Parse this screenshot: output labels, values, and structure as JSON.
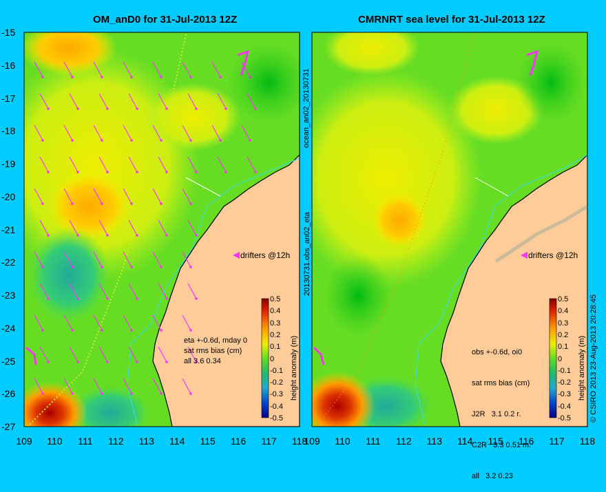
{
  "panels": [
    {
      "title": "OM_anD0 for 31-Jul-2013 12Z",
      "side_label": "ocean_an02_20130731",
      "stats_lines": [
        "eta +-0.6d, mday 0",
        "sat rms bias (cm)",
        "all 3.6 0.34"
      ],
      "drifters_label": "drifters @12h"
    },
    {
      "title": "CMRNRT sea level  for 31-Jul-2013 12Z",
      "side_label": "20130731.obs_an02_eta",
      "stats_lines": [
        "obs +-0.6d, oi0",
        "sat rms bias (cm)",
        "J2R   3.1 0.2 r.",
        "C2R   3.3 0.51 m.",
        "all   3.2 0.23"
      ],
      "drifters_label": "drifters @12h"
    }
  ],
  "colorbar": {
    "label": "height anomaly (m)",
    "ticks": [
      "0.5",
      "0.4",
      "0.3",
      "0.2",
      "0.1",
      "0",
      "-0.1",
      "-0.2",
      "-0.3",
      "-0.4",
      "-0.5"
    ],
    "range": [
      -0.5,
      0.5
    ]
  },
  "axes": {
    "lat_ticks": [
      "-15",
      "-16",
      "-17",
      "-18",
      "-19",
      "-20",
      "-21",
      "-22",
      "-23",
      "-24",
      "-25",
      "-26",
      "-27"
    ],
    "lon_ticks": [
      "109",
      "110",
      "111",
      "112",
      "113",
      "114",
      "115",
      "116",
      "117",
      "118"
    ],
    "lat_range": [
      -27,
      -15
    ],
    "lon_range": [
      109,
      118
    ]
  },
  "copyright": "© CSIRO 2013   23-Aug-2013 20:28:45",
  "colors": {
    "background": "#00ccff",
    "land": "#ffcc99",
    "ocean_base": "#55dd22",
    "coastline": "#000000",
    "drifters": "#ff33ff"
  }
}
